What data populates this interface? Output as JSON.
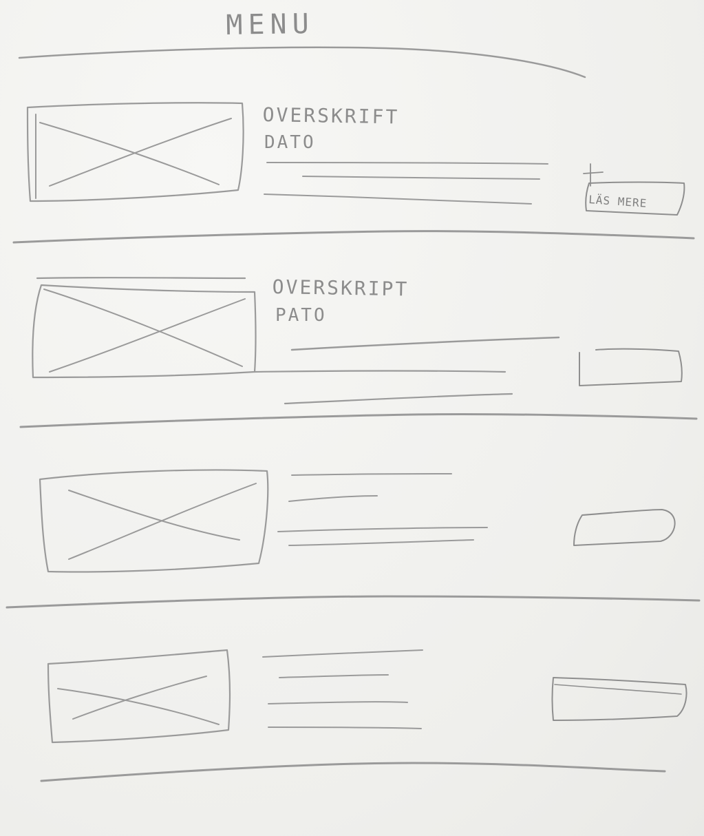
{
  "header": {
    "title": "MENU"
  },
  "articles": [
    {
      "heading": "OVERSKRIFT",
      "date": "DATO",
      "button_label": "LÄS MERE",
      "button_shown_label": true
    },
    {
      "heading": "OVERSKRIPT",
      "date": "PATO",
      "button_label": "",
      "button_shown_label": false
    },
    {
      "heading": "",
      "date": "",
      "button_label": "",
      "button_shown_label": false
    },
    {
      "heading": "",
      "date": "",
      "button_label": "",
      "button_shown_label": false
    }
  ],
  "colors": {
    "paper": "#f3f3f1",
    "pencil": "#9a9a9a"
  },
  "icons": [
    "image-placeholder-icon"
  ]
}
